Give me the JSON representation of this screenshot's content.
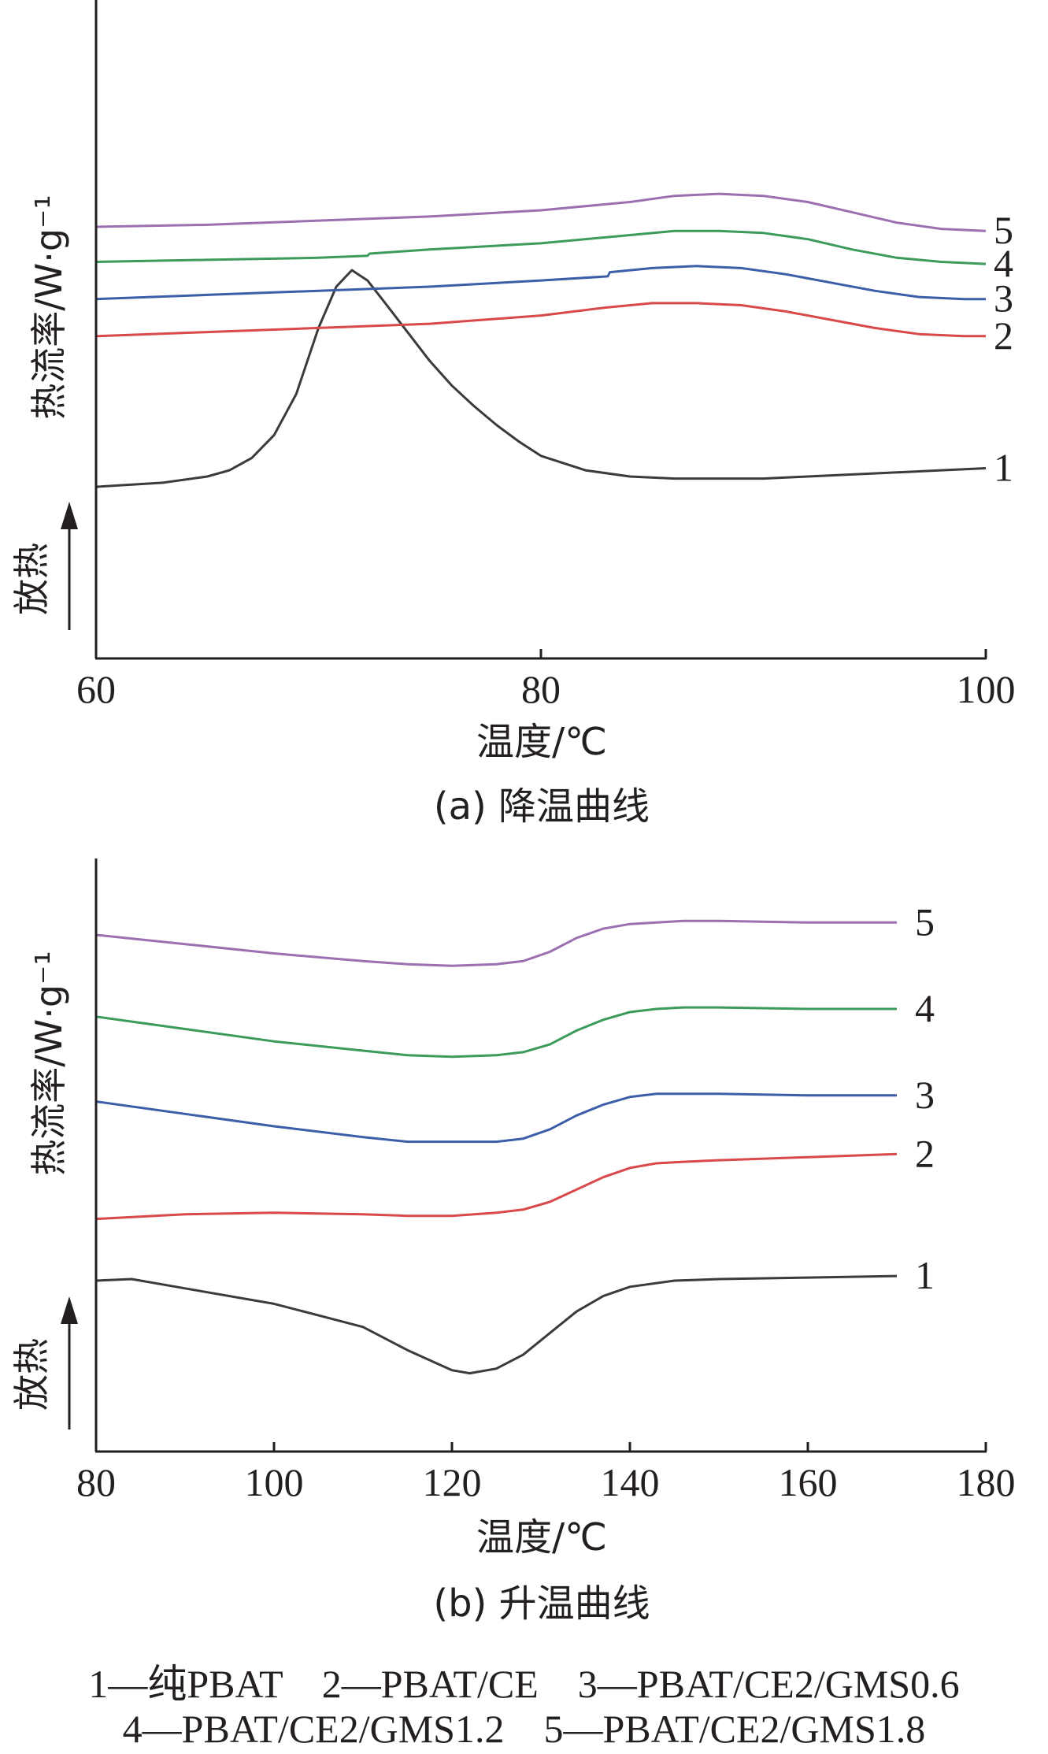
{
  "chart_data": [
    {
      "type": "line",
      "title": "(a) 降温曲线",
      "xlabel": "温度/℃",
      "ylabel": "热流率/W·g⁻¹",
      "exo_label": "放热",
      "xlim": [
        60,
        100
      ],
      "xticks": [
        60,
        80,
        100
      ],
      "y_axis_ticks": false,
      "grid": false,
      "legend_position": "bottom",
      "series": [
        {
          "label": "1",
          "color": "#3b3b3b",
          "x": [
            60,
            63,
            65,
            66,
            67,
            68,
            69,
            70,
            70.8,
            71.5,
            72.2,
            73,
            74,
            75,
            76,
            77,
            78,
            79,
            80,
            82,
            84,
            86,
            88,
            90,
            92,
            94,
            96,
            98,
            100
          ],
          "y": [
            -0.05,
            -0.03,
            0.0,
            0.03,
            0.09,
            0.2,
            0.4,
            0.72,
            0.92,
            1.0,
            0.95,
            0.84,
            0.7,
            0.56,
            0.44,
            0.34,
            0.25,
            0.17,
            0.1,
            0.03,
            0.0,
            -0.01,
            -0.01,
            -0.01,
            0.0,
            0.01,
            0.02,
            0.03,
            0.04
          ]
        },
        {
          "label": "2",
          "color": "#d9494a",
          "x": [
            60,
            65,
            70,
            75,
            80,
            83,
            85,
            87,
            89,
            91,
            93,
            95,
            97,
            99,
            100
          ],
          "y": [
            0.68,
            0.7,
            0.72,
            0.74,
            0.78,
            0.82,
            0.84,
            0.84,
            0.83,
            0.8,
            0.76,
            0.72,
            0.69,
            0.68,
            0.68
          ]
        },
        {
          "label": "3",
          "color": "#3b5ea8",
          "x": [
            60,
            65,
            70,
            75,
            80,
            83,
            83.1,
            85,
            87,
            89,
            91,
            93,
            95,
            97,
            99,
            100
          ],
          "y": [
            0.86,
            0.88,
            0.9,
            0.92,
            0.95,
            0.97,
            0.99,
            1.01,
            1.02,
            1.01,
            0.98,
            0.94,
            0.9,
            0.87,
            0.86,
            0.86
          ]
        },
        {
          "label": "4",
          "color": "#3c9a5a",
          "x": [
            60,
            65,
            70,
            72.2,
            72.3,
            75,
            80,
            84,
            86,
            88,
            90,
            92,
            94,
            96,
            98,
            100
          ],
          "y": [
            1.04,
            1.05,
            1.06,
            1.07,
            1.08,
            1.1,
            1.13,
            1.17,
            1.19,
            1.19,
            1.18,
            1.15,
            1.1,
            1.06,
            1.04,
            1.03
          ]
        },
        {
          "label": "5",
          "color": "#9b6fb0",
          "x": [
            60,
            65,
            70,
            75,
            80,
            84,
            86,
            88,
            90,
            92,
            94,
            96,
            98,
            100
          ],
          "y": [
            1.21,
            1.22,
            1.24,
            1.26,
            1.29,
            1.33,
            1.36,
            1.37,
            1.36,
            1.33,
            1.28,
            1.23,
            1.2,
            1.19
          ]
        }
      ]
    },
    {
      "type": "line",
      "title": "(b) 升温曲线",
      "xlabel": "温度/℃",
      "ylabel": "热流率/W·g⁻¹",
      "exo_label": "放热",
      "xlim": [
        80,
        180
      ],
      "xticks": [
        80,
        100,
        120,
        140,
        160,
        180
      ],
      "y_axis_ticks": false,
      "grid": false,
      "legend_position": "bottom",
      "series": [
        {
          "label": "1",
          "color": "#3b3b3b",
          "x": [
            80,
            84,
            90,
            100,
            110,
            115,
            120,
            122,
            125,
            128,
            131,
            134,
            137,
            140,
            145,
            150,
            160,
            170
          ],
          "y": [
            0.0,
            0.01,
            -0.05,
            -0.15,
            -0.3,
            -0.45,
            -0.58,
            -0.6,
            -0.57,
            -0.48,
            -0.34,
            -0.2,
            -0.1,
            -0.04,
            0.0,
            0.01,
            0.02,
            0.03
          ]
        },
        {
          "label": "2",
          "color": "#d9494a",
          "x": [
            80,
            90,
            100,
            110,
            115,
            120,
            125,
            128,
            131,
            134,
            137,
            140,
            143,
            146,
            150,
            160,
            170
          ],
          "y": [
            0.4,
            0.43,
            0.44,
            0.43,
            0.42,
            0.42,
            0.44,
            0.46,
            0.51,
            0.59,
            0.67,
            0.73,
            0.76,
            0.77,
            0.78,
            0.8,
            0.82
          ]
        },
        {
          "label": "3",
          "color": "#3b5ea8",
          "x": [
            80,
            90,
            100,
            110,
            115,
            120,
            125,
            128,
            131,
            134,
            137,
            140,
            143,
            146,
            150,
            160,
            170
          ],
          "y": [
            1.16,
            1.08,
            1.0,
            0.93,
            0.9,
            0.9,
            0.9,
            0.92,
            0.98,
            1.07,
            1.14,
            1.19,
            1.21,
            1.21,
            1.21,
            1.2,
            1.2
          ]
        },
        {
          "label": "4",
          "color": "#3c9a5a",
          "x": [
            80,
            90,
            100,
            110,
            115,
            120,
            125,
            128,
            131,
            134,
            137,
            140,
            143,
            146,
            150,
            160,
            170
          ],
          "y": [
            1.71,
            1.63,
            1.55,
            1.49,
            1.46,
            1.45,
            1.46,
            1.48,
            1.53,
            1.62,
            1.69,
            1.74,
            1.76,
            1.77,
            1.77,
            1.76,
            1.76
          ]
        },
        {
          "label": "5",
          "color": "#9b6fb0",
          "x": [
            80,
            90,
            100,
            110,
            115,
            120,
            125,
            128,
            131,
            134,
            137,
            140,
            143,
            146,
            150,
            160,
            170
          ],
          "y": [
            2.24,
            2.18,
            2.12,
            2.07,
            2.05,
            2.04,
            2.05,
            2.07,
            2.13,
            2.22,
            2.28,
            2.31,
            2.32,
            2.33,
            2.33,
            2.32,
            2.32
          ]
        }
      ]
    }
  ],
  "legend": {
    "line1": "1—纯PBAT    2—PBAT/CE    3—PBAT/CE2/GMS0.6",
    "line2": "4—PBAT/CE2/GMS1.2    5—PBAT/CE2/GMS1.8"
  },
  "colors": {
    "axis": "#231f20",
    "series_1": "#3b3b3b",
    "series_2": "#d9494a",
    "series_3": "#3b5ea8",
    "series_4": "#3c9a5a",
    "series_5": "#9b6fb0"
  }
}
